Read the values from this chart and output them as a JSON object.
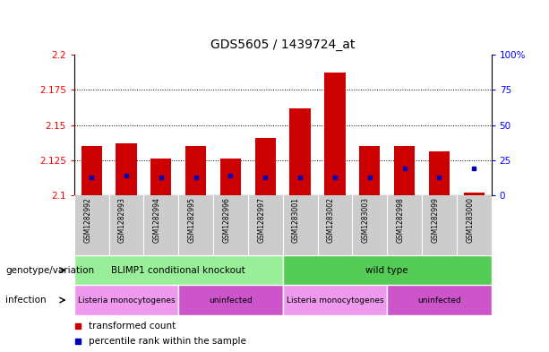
{
  "title": "GDS5605 / 1439724_at",
  "samples": [
    "GSM1282992",
    "GSM1282993",
    "GSM1282994",
    "GSM1282995",
    "GSM1282996",
    "GSM1282997",
    "GSM1283001",
    "GSM1283002",
    "GSM1283003",
    "GSM1282998",
    "GSM1282999",
    "GSM1283000"
  ],
  "red_values": [
    2.135,
    2.137,
    2.126,
    2.135,
    2.126,
    2.141,
    2.162,
    2.187,
    2.135,
    2.135,
    2.131,
    2.102
  ],
  "blue_values": [
    2.113,
    2.114,
    2.113,
    2.113,
    2.114,
    2.113,
    2.113,
    2.113,
    2.113,
    2.119,
    2.113,
    2.119
  ],
  "ymin": 2.1,
  "ymax": 2.2,
  "yticks": [
    2.1,
    2.125,
    2.15,
    2.175,
    2.2
  ],
  "y2ticks": [
    0,
    25,
    50,
    75,
    100
  ],
  "bar_width": 0.6,
  "red_color": "#cc0000",
  "blue_color": "#0000bb",
  "plot_bg": "#ffffff",
  "xtick_bg": "#cccccc",
  "genotype_groups": [
    {
      "label": "BLIMP1 conditional knockout",
      "start": 0,
      "end": 6,
      "color": "#99ee99"
    },
    {
      "label": "wild type",
      "start": 6,
      "end": 12,
      "color": "#55cc55"
    }
  ],
  "infection_groups": [
    {
      "label": "Listeria monocytogenes",
      "start": 0,
      "end": 3,
      "color": "#ee99ee"
    },
    {
      "label": "uninfected",
      "start": 3,
      "end": 6,
      "color": "#cc55cc"
    },
    {
      "label": "Listeria monocytogenes",
      "start": 6,
      "end": 9,
      "color": "#ee99ee"
    },
    {
      "label": "uninfected",
      "start": 9,
      "end": 12,
      "color": "#cc55cc"
    }
  ],
  "legend_red": "transformed count",
  "legend_blue": "percentile rank within the sample",
  "genotype_label": "genotype/variation",
  "infection_label": "infection"
}
